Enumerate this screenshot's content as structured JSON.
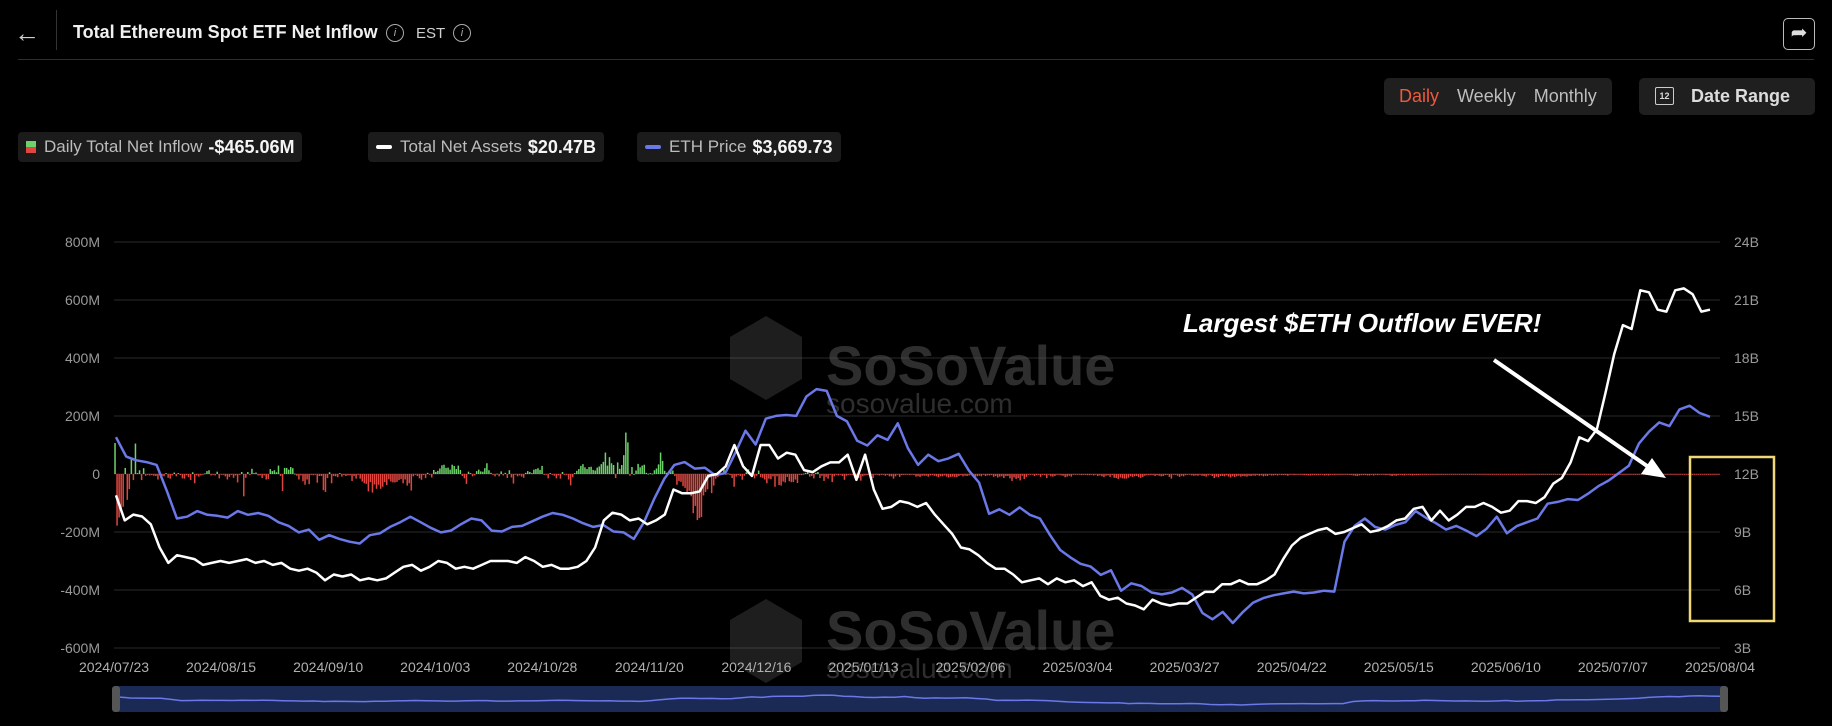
{
  "header": {
    "back_icon": "arrow-left-icon",
    "title": "Total Ethereum Spot ETF Net Inflow",
    "timezone": "EST",
    "share_icon": "share-icon"
  },
  "controls": {
    "periods": [
      "Daily",
      "Weekly",
      "Monthly"
    ],
    "active_period": "Daily",
    "date_range_label": "Date Range",
    "date_range_icon_text": "12"
  },
  "legend": [
    {
      "label": "Daily Total Net Inflow",
      "value": "-$465.06M"
    },
    {
      "label": "Total Net Assets",
      "value": "$20.47B"
    },
    {
      "label": "ETH Price",
      "value": "$3,669.73"
    }
  ],
  "watermark": {
    "brand": "SoSoValue",
    "url": "sosovalue.com"
  },
  "annotation": {
    "text": "Largest $ETH Outflow EVER!"
  },
  "colors": {
    "inflow": "#6cd36a",
    "outflow": "#e0463f",
    "assets": "#ffffff",
    "price": "#6a78e8",
    "highlight": "#f0d878",
    "accent": "#ee5a3b"
  },
  "chart_data": {
    "type": "bar+line",
    "x_tick_labels": [
      "2024/07/23",
      "2024/08/15",
      "2024/09/10",
      "2024/10/03",
      "2024/10/28",
      "2024/11/20",
      "2024/12/16",
      "2025/01/13",
      "2025/02/06",
      "2025/03/04",
      "2025/03/27",
      "2025/04/22",
      "2025/05/15",
      "2025/06/10",
      "2025/07/07",
      "2025/08/04"
    ],
    "left_axis": {
      "ticks": [
        "800M",
        "600M",
        "400M",
        "200M",
        "0",
        "-200M",
        "-400M",
        "-600M"
      ],
      "range": [
        -600,
        800
      ],
      "unit": "M"
    },
    "right_axis": {
      "ticks": [
        "24B",
        "21B",
        "18B",
        "15B",
        "12B",
        "9B",
        "6B",
        "3B"
      ],
      "range": [
        3,
        24
      ],
      "unit": "B"
    },
    "series": [
      {
        "name": "Daily Total Net Inflow",
        "kind": "bar",
        "unit": "M USD",
        "values": [
          107,
          -178,
          -150,
          -134,
          -113,
          21,
          -89,
          -52,
          52,
          -21,
          105,
          3,
          13,
          -21,
          20,
          -6,
          -3,
          -5,
          -4,
          -6,
          -7,
          -19,
          -3,
          -7,
          -8,
          3,
          -13,
          -16,
          -5,
          5,
          -8,
          3,
          -4,
          -15,
          -16,
          -5,
          -11,
          -21,
          6,
          -32,
          -5,
          -9,
          -5,
          -2,
          2,
          10,
          13,
          -5,
          -3,
          -5,
          8,
          -15,
          -1,
          -2,
          -8,
          -19,
          -10,
          -3,
          -13,
          -5,
          -29,
          -3,
          7,
          -77,
          -13,
          7,
          -4,
          18,
          3,
          5,
          -5,
          -5,
          -14,
          -5,
          -19,
          -17,
          17,
          10,
          13,
          6,
          29,
          -7,
          -59,
          21,
          21,
          15,
          24,
          20,
          1,
          -6,
          -19,
          -5,
          -25,
          -37,
          -19,
          -35,
          -3,
          -4,
          -2,
          -30,
          -7,
          -7,
          -56,
          -62,
          -14,
          6,
          -32,
          -7,
          -8,
          -11,
          3,
          -9,
          -4,
          -7,
          -5,
          -5,
          -24,
          -7,
          -16,
          -3,
          -16,
          -26,
          -32,
          -34,
          -60,
          -28,
          -64,
          -36,
          -51,
          -37,
          -51,
          -44,
          -28,
          -38,
          -18,
          -26,
          -29,
          -29,
          -27,
          -21,
          -17,
          -32,
          -19,
          -40,
          -32,
          -57,
          -8,
          -1,
          -7,
          -15,
          -20,
          -4,
          -14,
          4,
          -1,
          -12,
          14,
          7,
          11,
          19,
          30,
          32,
          21,
          22,
          15,
          32,
          28,
          17,
          29,
          14,
          -7,
          -15,
          -34,
          8,
          3,
          -8,
          -5,
          10,
          15,
          9,
          8,
          20,
          37,
          13,
          4,
          -3,
          -8,
          1,
          -8,
          9,
          -5,
          4,
          -14,
          13,
          -12,
          -33,
          -2,
          -8,
          -5,
          -9,
          -13,
          4,
          10,
          7,
          3,
          15,
          17,
          20,
          14,
          28,
          -3,
          -1,
          -15,
          3,
          -3,
          -6,
          -15,
          -5,
          -16,
          7,
          -3,
          -3,
          -19,
          -39,
          -11,
          3,
          11,
          17,
          28,
          34,
          23,
          17,
          24,
          25,
          14,
          12,
          22,
          26,
          34,
          42,
          74,
          29,
          58,
          37,
          31,
          -14,
          40,
          18,
          31,
          65,
          143,
          109,
          -6,
          24,
          0,
          12,
          35,
          23,
          29,
          32,
          4,
          1,
          3,
          1,
          13,
          19,
          33,
          74,
          45,
          11,
          4,
          3,
          15,
          12,
          -7,
          -37,
          -24,
          -27,
          -42,
          -48,
          -63,
          -58,
          -77,
          -135,
          -110,
          -159,
          -152,
          -148,
          -74,
          -62,
          -53,
          -13,
          -66,
          -40,
          -16,
          -10,
          1,
          -1,
          17,
          -2,
          2,
          -4,
          -14,
          -44,
          -9,
          -4,
          -7,
          -20,
          -6,
          6,
          16,
          -5,
          -7,
          -15,
          -6,
          12,
          -11,
          -13,
          -19,
          -32,
          -16,
          -18,
          -8,
          -44,
          -8,
          -38,
          -40,
          -26,
          -29,
          -10,
          -25,
          -28,
          -28,
          -19,
          -31,
          -3,
          -4,
          1,
          4,
          8,
          -9,
          -7,
          -15,
          4,
          7,
          -14,
          -6,
          -24,
          -10,
          -16,
          -3,
          -28,
          -8,
          -3,
          -5,
          -2,
          -7,
          -20,
          -6,
          -3,
          -1,
          -2,
          -13,
          -9,
          -14,
          -23,
          -8,
          -5,
          -4,
          -4,
          -3,
          -14,
          -2,
          -1,
          -5,
          -3,
          -3,
          -6,
          -3,
          -8,
          -8,
          -16,
          -8,
          -2,
          -10,
          -4,
          -3,
          -3,
          -2,
          -4,
          -1,
          -3,
          -9,
          -8,
          -10,
          -6,
          -6,
          -6,
          -9,
          -5,
          -4,
          -6,
          -8,
          -11,
          -8,
          -8,
          -5,
          -9,
          -12,
          -10,
          -9,
          -10,
          -11,
          -7,
          -4,
          -8,
          -6,
          -7,
          -5,
          -4,
          -4,
          -9,
          -8,
          -6,
          -8,
          -1,
          -7,
          -5,
          -5,
          -4,
          -10,
          -7,
          -12,
          -9,
          -8,
          -14,
          -7,
          -7,
          -15,
          -24,
          -12,
          -17,
          -14,
          -22,
          -6,
          -17,
          -10,
          -3,
          -1,
          -2,
          -7,
          -4,
          -3,
          -10,
          -3,
          -4,
          -14,
          -2,
          -8,
          -9,
          -7,
          -1,
          -3,
          -5,
          -6,
          -11,
          -9,
          -6,
          -9,
          -3,
          -1,
          -2,
          -1,
          -4,
          -3,
          -3,
          -4,
          -4,
          -1,
          -5,
          -2,
          -7,
          -5,
          -8,
          -11,
          -6,
          -5,
          -10,
          -4,
          -13,
          -14,
          -17,
          -12,
          -15,
          -16,
          -16,
          -13,
          -8,
          -10,
          -8,
          -7,
          -11,
          -13,
          -10,
          -6,
          -4,
          -4,
          -4,
          -4,
          -7,
          -4,
          -6,
          -8,
          -7,
          -4,
          -3,
          -10,
          -16,
          -2,
          -3,
          -6,
          -10,
          -6,
          -8,
          -4,
          -2,
          -1,
          -5,
          -6,
          -5,
          -6,
          -3,
          -6,
          -7,
          -9,
          -5,
          -2,
          -7,
          -14,
          -9,
          -11,
          -7,
          -7,
          -8,
          -5,
          -9,
          -12,
          -8,
          -10,
          -8,
          -6,
          -9,
          -7,
          -8,
          -9,
          -6,
          -7,
          -5,
          -6,
          -4,
          -6,
          -5,
          -8,
          -6,
          -7,
          -3,
          -5,
          -5,
          -4,
          -5,
          -2,
          -4,
          -4,
          -4,
          -6,
          -3,
          -2,
          -4,
          -3,
          -2,
          -3,
          -3,
          -4,
          -4,
          -5,
          -5,
          -4,
          -4,
          -4,
          -4,
          -3,
          -3,
          -5,
          -4,
          -5,
          -3,
          -3,
          -4,
          -2,
          -3,
          -3,
          -2,
          -2,
          -3,
          -3,
          -4,
          -5,
          -6,
          -7,
          -5,
          -4,
          -4,
          -4,
          -5,
          -5,
          -3,
          -5,
          -3,
          -4,
          -2,
          -2,
          -3,
          -4,
          -3,
          -5,
          -7,
          -5,
          -6,
          -4,
          -3,
          -4,
          -5,
          -3,
          -3,
          -4,
          -5,
          -4,
          -4,
          -4,
          -3,
          -3,
          -3,
          -3,
          -2,
          -3,
          -3,
          -2,
          -3,
          -2,
          -3,
          -2,
          -2,
          -2,
          -1,
          -2,
          -2,
          -2,
          -1,
          -2,
          -2,
          -2,
          -1,
          -1,
          -1,
          -1,
          -1,
          -1,
          -2,
          -2,
          -1,
          -1,
          -1,
          -1,
          -1,
          -1,
          -1,
          -1,
          -1,
          -1,
          -1,
          -1,
          -1,
          -1,
          -1,
          -1,
          -1,
          -1,
          -1,
          -1,
          -1,
          -1,
          -1,
          -1,
          -1,
          -1,
          -1,
          -1,
          -1,
          -1,
          -1,
          -1,
          -1,
          -1,
          -1,
          -1,
          -1,
          -1,
          -1,
          -1,
          -1,
          -1,
          -1,
          -1,
          -1,
          -1,
          -1,
          -1,
          -1,
          -1,
          -1,
          -1,
          -1,
          -1,
          -1,
          -1,
          -1,
          -1,
          -1,
          -1,
          -1,
          -1,
          -1,
          -1,
          -1,
          -1,
          -1,
          -1,
          -1,
          -1,
          -1,
          -1,
          -1,
          -1,
          -1,
          -1,
          -1,
          -1,
          -1,
          -1,
          -1,
          -1,
          -1,
          -1,
          -1,
          -1,
          -1,
          -1,
          -1,
          -1,
          -1,
          -1,
          -1,
          -1,
          -1,
          -1,
          -1,
          -1,
          -1,
          -1,
          -1,
          -1,
          -1,
          -1,
          -1,
          -1,
          -1,
          -1,
          -1,
          -1,
          -1,
          -1,
          -1,
          -1,
          -1,
          -1,
          -1
        ]
      },
      {
        "name": "Total Net Assets",
        "kind": "line",
        "unit": "B USD",
        "values": [
          10.9,
          9.6,
          9.9,
          9.8,
          9.4,
          8.2,
          7.4,
          7.8,
          7.7,
          7.6,
          7.3,
          7.4,
          7.5,
          7.4,
          7.5,
          7.6,
          7.4,
          7.5,
          7.3,
          7.4,
          7.1,
          7.0,
          7.1,
          6.9,
          6.5,
          6.8,
          6.7,
          6.8,
          6.5,
          6.6,
          6.5,
          6.6,
          6.9,
          7.2,
          7.3,
          7.0,
          7.2,
          7.5,
          7.4,
          7.1,
          7.2,
          7.1,
          7.3,
          7.5,
          7.5,
          7.5,
          7.4,
          7.7,
          7.5,
          7.2,
          7.3,
          7.1,
          7.1,
          7.2,
          7.5,
          8.2,
          9.6,
          10.0,
          9.9,
          9.6,
          9.7,
          9.4,
          9.6,
          9.9,
          11.2,
          11.0,
          11.0,
          11.1,
          11.9,
          12.0,
          12.4,
          13.5,
          12.4,
          11.9,
          13.5,
          13.5,
          12.8,
          13.1,
          13.0,
          12.2,
          12.1,
          12.4,
          12.6,
          12.6,
          13.0,
          11.7,
          13.0,
          11.2,
          10.2,
          10.3,
          10.6,
          10.5,
          10.3,
          10.5,
          9.9,
          9.4,
          8.9,
          8.2,
          8.1,
          7.8,
          7.4,
          7.1,
          7.1,
          6.8,
          6.4,
          6.5,
          6.6,
          6.3,
          6.6,
          6.4,
          6.5,
          6.2,
          6.4,
          5.7,
          5.5,
          5.6,
          5.3,
          5.2,
          5.0,
          5.5,
          5.3,
          5.2,
          5.3,
          5.3,
          5.6,
          5.9,
          5.9,
          6.3,
          6.3,
          6.5,
          6.3,
          6.3,
          6.5,
          6.8,
          7.6,
          8.3,
          8.7,
          8.9,
          9.1,
          9.2,
          8.9,
          9.0,
          9.2,
          9.4,
          9.0,
          9.1,
          9.3,
          9.6,
          9.7,
          10.2,
          10.3,
          9.6,
          10.1,
          9.6,
          9.9,
          10.3,
          10.3,
          10.5,
          10.3,
          10.0,
          10.1,
          10.6,
          10.6,
          10.5,
          10.8,
          11.5,
          11.8,
          12.6,
          13.9,
          13.7,
          14.3,
          16.2,
          18.2,
          19.7,
          19.5,
          21.5,
          21.4,
          20.5,
          20.4,
          21.5,
          21.6,
          21.3,
          20.4,
          20.5
        ]
      },
      {
        "name": "ETH Price",
        "kind": "line",
        "unit": "USD",
        "values": [
          3480,
          3270,
          3230,
          3210,
          3180,
          2900,
          2600,
          2620,
          2680,
          2640,
          2630,
          2610,
          2680,
          2640,
          2660,
          2630,
          2560,
          2520,
          2450,
          2480,
          2370,
          2420,
          2380,
          2350,
          2330,
          2420,
          2440,
          2510,
          2560,
          2620,
          2560,
          2500,
          2450,
          2470,
          2540,
          2600,
          2580,
          2470,
          2460,
          2510,
          2520,
          2570,
          2620,
          2660,
          2640,
          2600,
          2550,
          2510,
          2530,
          2460,
          2450,
          2380,
          2560,
          2810,
          3030,
          3180,
          3210,
          3140,
          3150,
          3070,
          3090,
          3310,
          3550,
          3400,
          3680,
          3710,
          3720,
          3710,
          3920,
          4000,
          3980,
          3710,
          3650,
          3440,
          3390,
          3500,
          3450,
          3630,
          3360,
          3180,
          3290,
          3220,
          3250,
          3300,
          3120,
          2990,
          2650,
          2700,
          2640,
          2720,
          2640,
          2600,
          2420,
          2260,
          2180,
          2110,
          2080,
          1990,
          2040,
          1820,
          1900,
          1870,
          1800,
          1780,
          1800,
          1850,
          1780,
          1580,
          1510,
          1590,
          1470,
          1590,
          1690,
          1740,
          1770,
          1790,
          1810,
          1790,
          1800,
          1820,
          1810,
          2350,
          2520,
          2600,
          2510,
          2480,
          2530,
          2560,
          2680,
          2610,
          2550,
          2480,
          2520,
          2470,
          2410,
          2490,
          2620,
          2440,
          2520,
          2560,
          2600,
          2760,
          2780,
          2810,
          2800,
          2870,
          2950,
          3010,
          3090,
          3170,
          3410,
          3540,
          3640,
          3600,
          3780,
          3820,
          3740,
          3700
        ]
      }
    ],
    "grid": true,
    "legend_position": "top-left"
  }
}
